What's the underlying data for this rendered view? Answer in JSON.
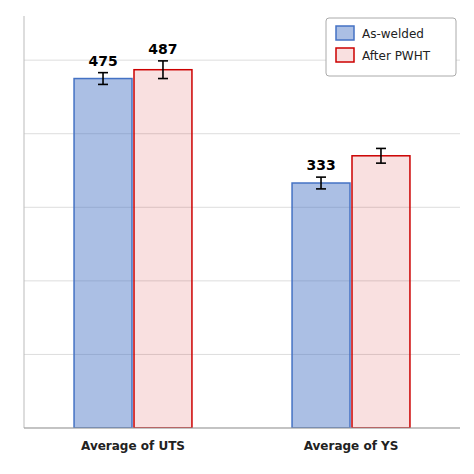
{
  "chart_data": {
    "type": "bar",
    "categories": [
      "Average of UTS",
      "Average of YS"
    ],
    "series": [
      {
        "name": "As-welded",
        "color": "#4472c4",
        "values": [
          475,
          333
        ],
        "errors": [
          8,
          8
        ],
        "value_labels": [
          "475",
          "333"
        ]
      },
      {
        "name": "After PWHT",
        "color": "#cc0000",
        "values": [
          487,
          370
        ],
        "errors": [
          12,
          10
        ],
        "value_labels": [
          "487",
          null
        ]
      }
    ],
    "ylim": [
      0,
      560
    ],
    "yticks": [
      0,
      100,
      200,
      300,
      400,
      500
    ],
    "grid": true,
    "legend": "upper right",
    "data_labels": true,
    "tick_labels": "x"
  }
}
